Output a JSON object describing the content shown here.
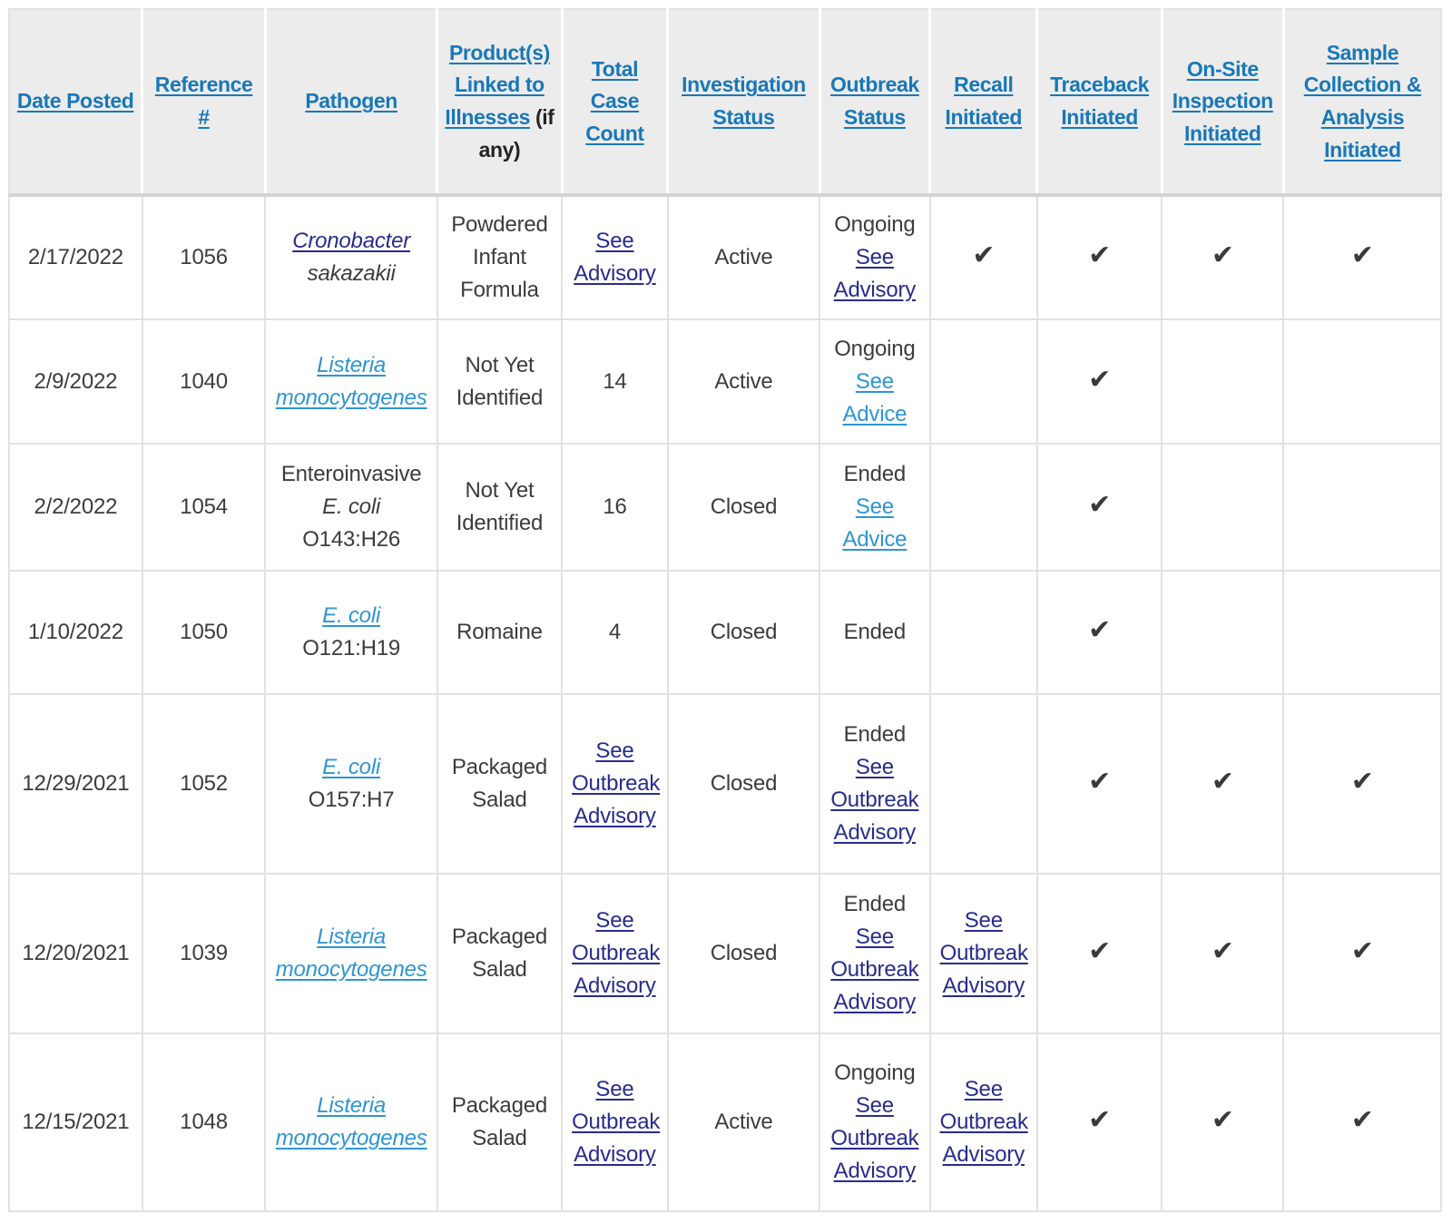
{
  "colors": {
    "header_link": "#1878b8",
    "link": "#2e95d3",
    "visited_link": "#272c8e",
    "text": "#3c3c3c",
    "header_bg": "#ececec",
    "border": "#e2e2e2",
    "check": "#3a3a3a"
  },
  "glyphs": {
    "check": "✔"
  },
  "table": {
    "columns": [
      {
        "key": "date-posted",
        "label": "Date Posted"
      },
      {
        "key": "reference",
        "label": "Reference #"
      },
      {
        "key": "pathogen",
        "label": "Pathogen"
      },
      {
        "key": "product",
        "label": "Product(s) Linked to Illnesses",
        "suffix": "(if any)"
      },
      {
        "key": "case-count",
        "label": "Total Case Count"
      },
      {
        "key": "investigation-status",
        "label": "Investigation Status"
      },
      {
        "key": "outbreak-status",
        "label": "Outbreak Status"
      },
      {
        "key": "recall",
        "label": "Recall Initiated"
      },
      {
        "key": "traceback",
        "label": "Traceback Initiated"
      },
      {
        "key": "onsite-inspection",
        "label": "On-Site Inspection Initiated"
      },
      {
        "key": "sample-collection",
        "label": "Sample Collection & Analysis Initiated"
      }
    ],
    "rows": [
      {
        "cells": [
          [
            {
              "t": "text",
              "s": "2/17/2022"
            }
          ],
          [
            {
              "t": "text",
              "s": "1056"
            }
          ],
          [
            {
              "t": "vlink",
              "s": "Cronobacter",
              "i": true
            },
            {
              "t": "text",
              "s": "\nsakazakii",
              "i": true
            }
          ],
          [
            {
              "t": "text",
              "s": "Powdered Infant Formula"
            }
          ],
          [
            {
              "t": "vlink",
              "s": "See Advisory"
            }
          ],
          [
            {
              "t": "text",
              "s": "Active"
            }
          ],
          [
            {
              "t": "text",
              "s": "Ongoing\n"
            },
            {
              "t": "vlink",
              "s": "See Advisory"
            }
          ],
          [
            {
              "t": "check"
            }
          ],
          [
            {
              "t": "check"
            }
          ],
          [
            {
              "t": "check"
            }
          ],
          [
            {
              "t": "check"
            }
          ]
        ]
      },
      {
        "cells": [
          [
            {
              "t": "text",
              "s": "2/9/2022"
            }
          ],
          [
            {
              "t": "text",
              "s": "1040"
            }
          ],
          [
            {
              "t": "link",
              "s": "Listeria monocytogenes",
              "i": true
            }
          ],
          [
            {
              "t": "text",
              "s": "Not Yet Identified"
            }
          ],
          [
            {
              "t": "text",
              "s": "14"
            }
          ],
          [
            {
              "t": "text",
              "s": "Active"
            }
          ],
          [
            {
              "t": "text",
              "s": "Ongoing\n"
            },
            {
              "t": "link",
              "s": "See Advice"
            }
          ],
          [],
          [
            {
              "t": "check"
            }
          ],
          [],
          []
        ]
      },
      {
        "cells": [
          [
            {
              "t": "text",
              "s": "2/2/2022"
            }
          ],
          [
            {
              "t": "text",
              "s": "1054"
            }
          ],
          [
            {
              "t": "text",
              "s": "Enteroinvasive\n"
            },
            {
              "t": "text",
              "s": "E. coli",
              "i": true
            },
            {
              "t": "text",
              "s": "\nO143:H26"
            }
          ],
          [
            {
              "t": "text",
              "s": "Not Yet Identified"
            }
          ],
          [
            {
              "t": "text",
              "s": "16"
            }
          ],
          [
            {
              "t": "text",
              "s": "Closed"
            }
          ],
          [
            {
              "t": "text",
              "s": "Ended\n"
            },
            {
              "t": "link",
              "s": "See Advice"
            }
          ],
          [],
          [
            {
              "t": "check"
            }
          ],
          [],
          []
        ]
      },
      {
        "cells": [
          [
            {
              "t": "text",
              "s": "1/10/2022"
            }
          ],
          [
            {
              "t": "text",
              "s": "1050"
            }
          ],
          [
            {
              "t": "link",
              "s": "E. coli",
              "i": true
            },
            {
              "t": "text",
              "s": "\nO121:H19"
            }
          ],
          [
            {
              "t": "text",
              "s": "Romaine"
            }
          ],
          [
            {
              "t": "text",
              "s": "4"
            }
          ],
          [
            {
              "t": "text",
              "s": "Closed"
            }
          ],
          [
            {
              "t": "text",
              "s": "Ended"
            }
          ],
          [],
          [
            {
              "t": "check"
            }
          ],
          [],
          []
        ]
      },
      {
        "cells": [
          [
            {
              "t": "text",
              "s": "12/29/2021"
            }
          ],
          [
            {
              "t": "text",
              "s": "1052"
            }
          ],
          [
            {
              "t": "link",
              "s": "E. coli",
              "i": true
            },
            {
              "t": "text",
              "s": "\nO157:H7"
            }
          ],
          [
            {
              "t": "text",
              "s": "Packaged Salad"
            }
          ],
          [
            {
              "t": "vlink",
              "s": "See Outbreak Advisory"
            }
          ],
          [
            {
              "t": "text",
              "s": "Closed"
            }
          ],
          [
            {
              "t": "text",
              "s": "Ended\n"
            },
            {
              "t": "vlink",
              "s": "See Outbreak Advisory"
            }
          ],
          [],
          [
            {
              "t": "check"
            }
          ],
          [
            {
              "t": "check"
            }
          ],
          [
            {
              "t": "check"
            }
          ]
        ]
      },
      {
        "cells": [
          [
            {
              "t": "text",
              "s": "12/20/2021"
            }
          ],
          [
            {
              "t": "text",
              "s": "1039"
            }
          ],
          [
            {
              "t": "link",
              "s": "Listeria monocytogenes",
              "i": true
            }
          ],
          [
            {
              "t": "text",
              "s": "Packaged Salad"
            }
          ],
          [
            {
              "t": "vlink",
              "s": "See Outbreak Advisory"
            }
          ],
          [
            {
              "t": "text",
              "s": "Closed"
            }
          ],
          [
            {
              "t": "text",
              "s": "Ended\n"
            },
            {
              "t": "vlink",
              "s": "See Outbreak Advisory"
            }
          ],
          [
            {
              "t": "vlink",
              "s": "See Outbreak Advisory"
            }
          ],
          [
            {
              "t": "check"
            }
          ],
          [
            {
              "t": "check"
            }
          ],
          [
            {
              "t": "check"
            }
          ]
        ]
      },
      {
        "cells": [
          [
            {
              "t": "text",
              "s": "12/15/2021"
            }
          ],
          [
            {
              "t": "text",
              "s": "1048"
            }
          ],
          [
            {
              "t": "link",
              "s": "Listeria monocytogenes",
              "i": true
            }
          ],
          [
            {
              "t": "text",
              "s": "Packaged Salad"
            }
          ],
          [
            {
              "t": "vlink",
              "s": "See Outbreak Advisory"
            }
          ],
          [
            {
              "t": "text",
              "s": "Active"
            }
          ],
          [
            {
              "t": "text",
              "s": "Ongoing\n"
            },
            {
              "t": "vlink",
              "s": "See Outbreak Advisory"
            }
          ],
          [
            {
              "t": "vlink",
              "s": "See Outbreak Advisory"
            }
          ],
          [
            {
              "t": "check"
            }
          ],
          [
            {
              "t": "check"
            }
          ],
          [
            {
              "t": "check"
            }
          ]
        ]
      }
    ]
  }
}
